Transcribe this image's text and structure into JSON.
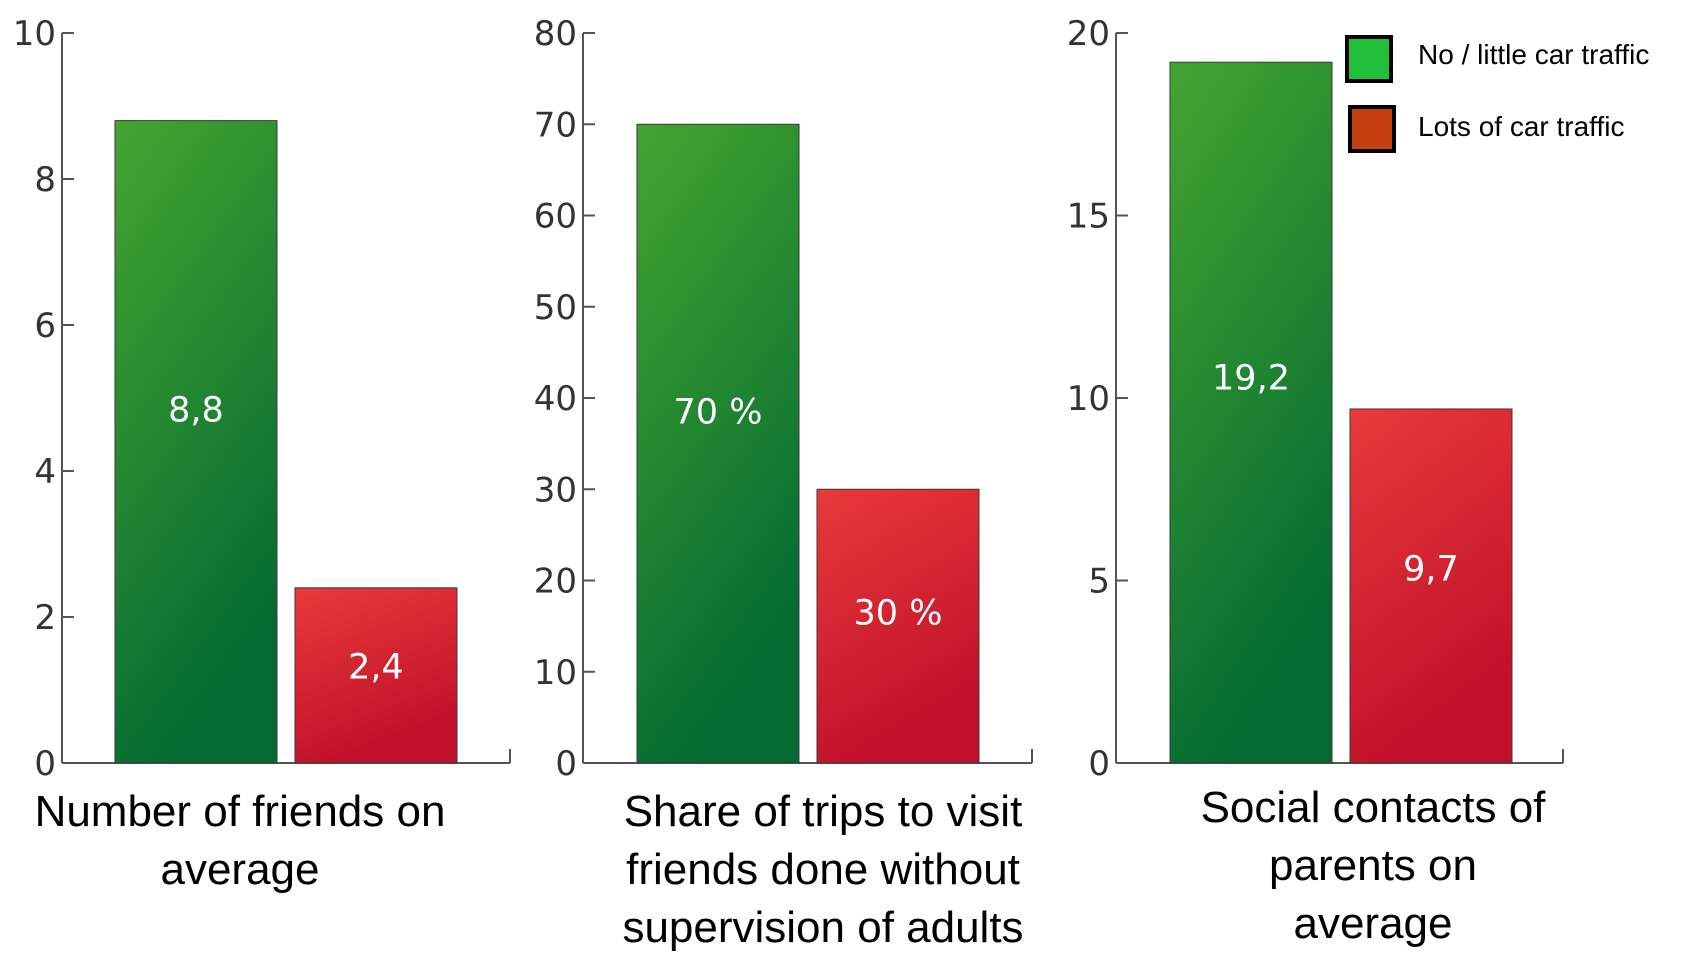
{
  "colors": {
    "green_top": "#43a630",
    "green_bottom": "#046a32",
    "red_top": "#e83a3a",
    "red_bottom": "#c0102a",
    "legend_green": "#22c03a",
    "legend_red": "#c4410f",
    "axis": "#555555"
  },
  "legend": {
    "items": [
      {
        "label": "No / little car traffic",
        "color": "#22c03a"
      },
      {
        "label": "Lots of car traffic",
        "color": "#c4410f"
      }
    ],
    "placement": "top-right"
  },
  "chart_data": [
    {
      "type": "bar",
      "categories": [
        "No / little car traffic",
        "Lots of car traffic"
      ],
      "values": [
        8.8,
        2.4
      ],
      "value_labels": [
        "8,8",
        "2,4"
      ],
      "caption_lines": [
        "Number of friends on",
        "average"
      ],
      "ylim": [
        0,
        10
      ],
      "yticks": [
        0,
        2,
        4,
        6,
        8,
        10
      ],
      "ytick_labels": [
        "0",
        "2",
        "4",
        "6",
        "8",
        "10"
      ],
      "grid": false
    },
    {
      "type": "bar",
      "categories": [
        "No / little car traffic",
        "Lots of car traffic"
      ],
      "values": [
        70,
        30
      ],
      "value_labels": [
        "70 %",
        "30 %"
      ],
      "caption_lines": [
        "Share of trips to visit",
        "friends done without",
        "supervision of adults"
      ],
      "ylim": [
        0,
        80
      ],
      "yticks": [
        0,
        10,
        20,
        30,
        40,
        50,
        60,
        70,
        80
      ],
      "ytick_labels": [
        "0",
        "10",
        "20",
        "30",
        "40",
        "50",
        "60",
        "70",
        "80"
      ],
      "grid": false
    },
    {
      "type": "bar",
      "categories": [
        "No / little car traffic",
        "Lots of car traffic"
      ],
      "values": [
        19.2,
        9.7
      ],
      "value_labels": [
        "19,2",
        "9,7"
      ],
      "caption_lines": [
        "Social contacts of",
        "parents on",
        "average"
      ],
      "ylim": [
        0,
        20
      ],
      "yticks": [
        0,
        5,
        10,
        15,
        20
      ],
      "ytick_labels": [
        "0",
        "5",
        "10",
        "15",
        "20"
      ],
      "grid": false
    }
  ]
}
